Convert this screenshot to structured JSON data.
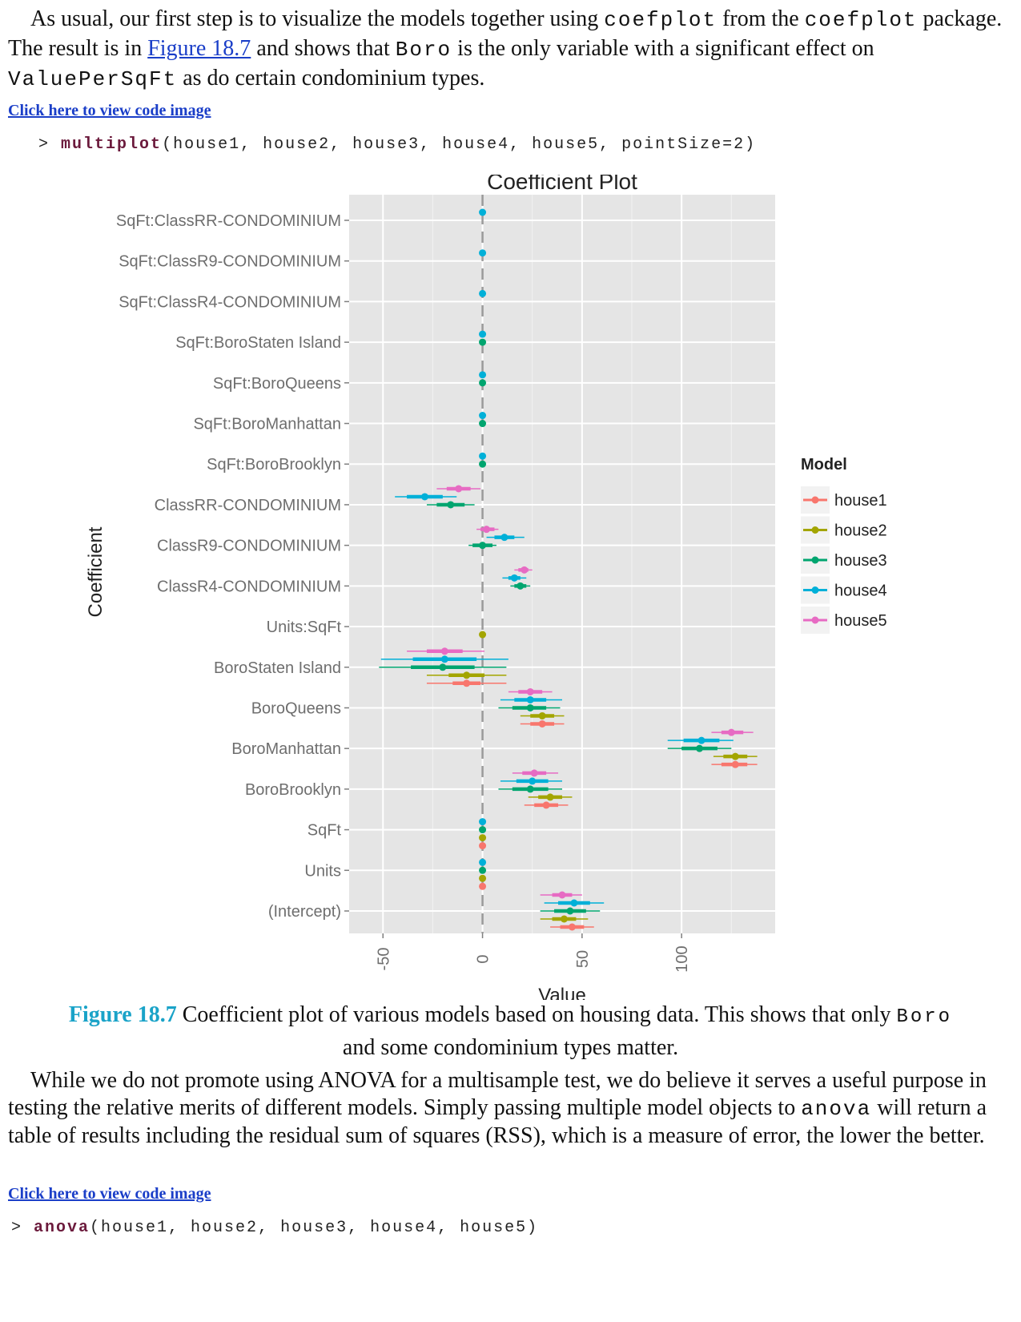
{
  "para1": {
    "text_a": "As usual, our first step is to visualize the models together using",
    "code_a": "coefplot",
    "text_b": "from the",
    "code_b": "coefplot",
    "text_c": "package. The result is in",
    "link": "Figure 18.7",
    "text_d": "and shows that",
    "code_c": "Boro",
    "text_e": "is the only variable with a significant effect on",
    "code_d": "ValuePerSqFt",
    "text_f": "as do certain condominium types."
  },
  "code_link_1": "Click here to view code image",
  "code_line_1": {
    "prompt": ">",
    "fn": "multiplot",
    "args": "(house1, house2, house3, house4, house5, pointSize=2)"
  },
  "chart_data": {
    "type": "scatter",
    "title": "Coefficient Plot",
    "xlabel": "Value",
    "ylabel": "Coefficient",
    "xlim": [
      -67,
      147
    ],
    "xticks": [
      -50,
      0,
      50,
      100
    ],
    "grid": true,
    "legend_title": "Model",
    "legend_position": "right",
    "categories": [
      "SqFt:ClassRR-CONDOMINIUM",
      "SqFt:ClassR9-CONDOMINIUM",
      "SqFt:ClassR4-CONDOMINIUM",
      "SqFt:BoroStaten Island",
      "SqFt:BoroQueens",
      "SqFt:BoroManhattan",
      "SqFt:BoroBrooklyn",
      "ClassRR-CONDOMINIUM",
      "ClassR9-CONDOMINIUM",
      "ClassR4-CONDOMINIUM",
      "Units:SqFt",
      "BoroStaten Island",
      "BoroQueens",
      "BoroManhattan",
      "BoroBrooklyn",
      "SqFt",
      "Units",
      "(Intercept)"
    ],
    "series": [
      {
        "name": "house1",
        "color": "#F8766D",
        "points": [
          {
            "coef": "BoroStaten Island",
            "value": -8,
            "inner": [
              -15,
              -1
            ],
            "outer": [
              -28,
              12
            ]
          },
          {
            "coef": "BoroQueens",
            "value": 30,
            "inner": [
              24,
              36
            ],
            "outer": [
              19,
              41
            ]
          },
          {
            "coef": "BoroManhattan",
            "value": 127,
            "inner": [
              120,
              133
            ],
            "outer": [
              115,
              138
            ]
          },
          {
            "coef": "BoroBrooklyn",
            "value": 32,
            "inner": [
              26,
              38
            ],
            "outer": [
              21,
              43
            ]
          },
          {
            "coef": "SqFt",
            "value": 0
          },
          {
            "coef": "Units",
            "value": 0
          },
          {
            "coef": "(Intercept)",
            "value": 45,
            "inner": [
              39,
              51
            ],
            "outer": [
              34,
              56
            ]
          }
        ]
      },
      {
        "name": "house2",
        "color": "#A3A500",
        "points": [
          {
            "coef": "Units:SqFt",
            "value": 0
          },
          {
            "coef": "BoroStaten Island",
            "value": -8,
            "inner": [
              -17,
              1
            ],
            "outer": [
              -28,
              12
            ]
          },
          {
            "coef": "BoroQueens",
            "value": 30,
            "inner": [
              24,
              36
            ],
            "outer": [
              19,
              41
            ]
          },
          {
            "coef": "BoroManhattan",
            "value": 127,
            "inner": [
              121,
              133
            ],
            "outer": [
              116,
              138
            ]
          },
          {
            "coef": "BoroBrooklyn",
            "value": 34,
            "inner": [
              28,
              40
            ],
            "outer": [
              23,
              45
            ]
          },
          {
            "coef": "SqFt",
            "value": 0
          },
          {
            "coef": "Units",
            "value": 0
          },
          {
            "coef": "(Intercept)",
            "value": 41,
            "inner": [
              35,
              47
            ],
            "outer": [
              29,
              53
            ]
          }
        ]
      },
      {
        "name": "house3",
        "color": "#00A56F",
        "points": [
          {
            "coef": "SqFt:BoroStaten Island",
            "value": 0
          },
          {
            "coef": "SqFt:BoroQueens",
            "value": 0
          },
          {
            "coef": "SqFt:BoroManhattan",
            "value": 0
          },
          {
            "coef": "SqFt:BoroBrooklyn",
            "value": 0
          },
          {
            "coef": "ClassRR-CONDOMINIUM",
            "value": -16,
            "inner": [
              -23,
              -9
            ],
            "outer": [
              -28,
              -4
            ]
          },
          {
            "coef": "ClassR9-CONDOMINIUM",
            "value": 0,
            "inner": [
              -5,
              5
            ],
            "outer": [
              -7,
              7
            ]
          },
          {
            "coef": "ClassR4-CONDOMINIUM",
            "value": 19,
            "inner": [
              16,
              22
            ],
            "outer": [
              14,
              24
            ]
          },
          {
            "coef": "BoroStaten Island",
            "value": -20,
            "inner": [
              -36,
              -4
            ],
            "outer": [
              -52,
              12
            ]
          },
          {
            "coef": "BoroQueens",
            "value": 24,
            "inner": [
              15,
              32
            ],
            "outer": [
              8,
              39
            ]
          },
          {
            "coef": "BoroManhattan",
            "value": 109,
            "inner": [
              100,
              118
            ],
            "outer": [
              93,
              125
            ]
          },
          {
            "coef": "BoroBrooklyn",
            "value": 24,
            "inner": [
              15,
              33
            ],
            "outer": [
              8,
              40
            ]
          },
          {
            "coef": "SqFt",
            "value": 0
          },
          {
            "coef": "Units",
            "value": 0
          },
          {
            "coef": "(Intercept)",
            "value": 44,
            "inner": [
              36,
              52
            ],
            "outer": [
              29,
              59
            ]
          }
        ]
      },
      {
        "name": "house4",
        "color": "#00B0D8",
        "points": [
          {
            "coef": "SqFt:ClassRR-CONDOMINIUM",
            "value": 0
          },
          {
            "coef": "SqFt:ClassR9-CONDOMINIUM",
            "value": 0
          },
          {
            "coef": "SqFt:ClassR4-CONDOMINIUM",
            "value": 0
          },
          {
            "coef": "SqFt:BoroStaten Island",
            "value": 0
          },
          {
            "coef": "SqFt:BoroQueens",
            "value": 0
          },
          {
            "coef": "SqFt:BoroManhattan",
            "value": 0
          },
          {
            "coef": "SqFt:BoroBrooklyn",
            "value": 0
          },
          {
            "coef": "ClassRR-CONDOMINIUM",
            "value": -29,
            "inner": [
              -38,
              -20
            ],
            "outer": [
              -44,
              -13
            ]
          },
          {
            "coef": "ClassR9-CONDOMINIUM",
            "value": 11,
            "inner": [
              6,
              16
            ],
            "outer": [
              2,
              21
            ]
          },
          {
            "coef": "ClassR4-CONDOMINIUM",
            "value": 16,
            "inner": [
              13,
              19
            ],
            "outer": [
              10,
              22
            ]
          },
          {
            "coef": "BoroStaten Island",
            "value": -19,
            "inner": [
              -35,
              -3
            ],
            "outer": [
              -51,
              13
            ]
          },
          {
            "coef": "BoroQueens",
            "value": 24,
            "inner": [
              16,
              32
            ],
            "outer": [
              9,
              40
            ]
          },
          {
            "coef": "BoroManhattan",
            "value": 110,
            "inner": [
              101,
              119
            ],
            "outer": [
              93,
              126
            ]
          },
          {
            "coef": "BoroBrooklyn",
            "value": 25,
            "inner": [
              17,
              33
            ],
            "outer": [
              9,
              40
            ]
          },
          {
            "coef": "SqFt",
            "value": 0
          },
          {
            "coef": "Units",
            "value": 0
          },
          {
            "coef": "(Intercept)",
            "value": 46,
            "inner": [
              38,
              54
            ],
            "outer": [
              31,
              61
            ]
          }
        ]
      },
      {
        "name": "house5",
        "color": "#E76BC3",
        "points": [
          {
            "coef": "ClassRR-CONDOMINIUM",
            "value": -12,
            "inner": [
              -18,
              -6
            ],
            "outer": [
              -23,
              -1
            ]
          },
          {
            "coef": "ClassR9-CONDOMINIUM",
            "value": 2,
            "inner": [
              -1,
              6
            ],
            "outer": [
              -3,
              8
            ]
          },
          {
            "coef": "ClassR4-CONDOMINIUM",
            "value": 21,
            "inner": [
              18,
              23
            ],
            "outer": [
              16,
              25
            ]
          },
          {
            "coef": "BoroStaten Island",
            "value": -19,
            "inner": [
              -28,
              -10
            ],
            "outer": [
              -38,
              1
            ]
          },
          {
            "coef": "BoroQueens",
            "value": 24,
            "inner": [
              18,
              30
            ],
            "outer": [
              13,
              35
            ]
          },
          {
            "coef": "BoroManhattan",
            "value": 125,
            "inner": [
              120,
              131
            ],
            "outer": [
              115,
              136
            ]
          },
          {
            "coef": "BoroBrooklyn",
            "value": 26,
            "inner": [
              20,
              32
            ],
            "outer": [
              15,
              38
            ]
          },
          {
            "coef": "(Intercept)",
            "value": 40,
            "inner": [
              35,
              45
            ],
            "outer": [
              29,
              50
            ]
          }
        ]
      }
    ]
  },
  "caption": {
    "label": "Figure 18.7",
    "text_a": "Coefficient plot of various models based on housing data. This shows that only",
    "code": "Boro",
    "text_b": "and some condominium types matter."
  },
  "para2": {
    "text_a": "While we do not promote using ANOVA for a multisample test, we do believe it serves a useful purpose in testing the relative merits of different models. Simply passing multiple model objects to",
    "code": "anova",
    "text_b": "will return a table of results including the residual sum of squares (RSS), which is a measure of error, the lower the better."
  },
  "code_link_2": "Click here to view code image",
  "code_line_2": {
    "prompt": "> ",
    "fn": "anova",
    "args": "(house1, house2, house3, house4, house5)"
  }
}
